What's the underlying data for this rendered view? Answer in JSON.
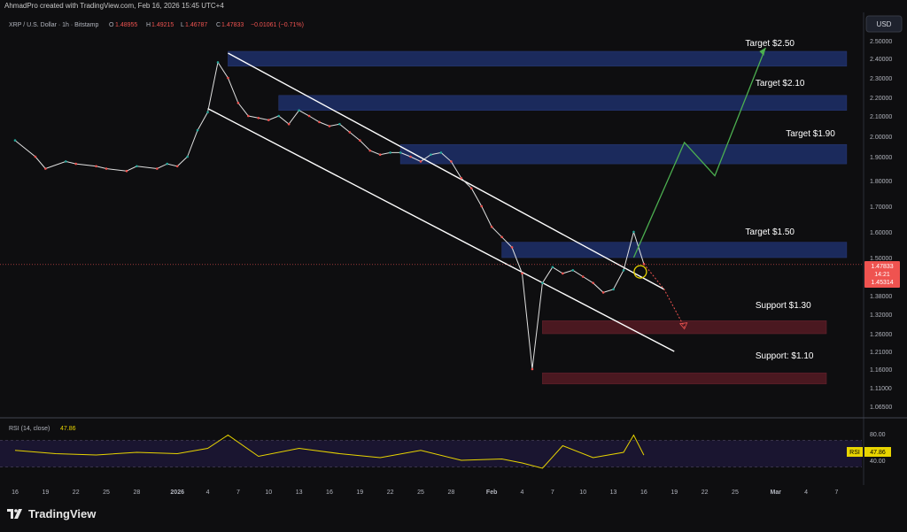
{
  "header": {
    "credit": "AhmadPro created with TradingView.com, Feb 16, 2026 15:45 UTC+4",
    "symbol": "XRP / U.S. Dollar · 1h · Bitstamp",
    "o_label": "O",
    "o_value": "1.48955",
    "h_label": "H",
    "h_value": "1.49215",
    "l_label": "L",
    "l_value": "1.46787",
    "c_label": "C",
    "c_value": "1.47833",
    "change": "−0.01061 (−0.71%)",
    "currency": "USD"
  },
  "price_tag": {
    "price": "1.47833",
    "countdown": "14:21",
    "level": "1.45314"
  },
  "rsi": {
    "title": "RSI (14, close)",
    "value": "47.86",
    "tag_label": "RSI",
    "tag_value": "47.86"
  },
  "footer": {
    "brand": "TradingView"
  },
  "colors": {
    "up": "#26a69a",
    "down": "#ef5350",
    "zone_blue": "#1b2a5c",
    "zone_red": "#4a1820",
    "target_path": "#4caf50",
    "rsi_line": "#e8d400"
  },
  "chart_data": {
    "type": "line",
    "title": "XRP / U.S. Dollar · 1h · Bitstamp",
    "ylim": [
      1.04,
      2.52
    ],
    "y_ticks": [
      "2.50000",
      "2.40000",
      "2.30000",
      "2.20000",
      "2.10000",
      "2.00000",
      "1.90000",
      "1.80000",
      "1.70000",
      "1.60000",
      "1.50000",
      "1.38000",
      "1.32000",
      "1.26000",
      "1.21000",
      "1.16000",
      "1.11000",
      "1.06500"
    ],
    "x_ticks": [
      "16",
      "19",
      "22",
      "25",
      "28",
      "2026",
      "4",
      "7",
      "10",
      "13",
      "16",
      "19",
      "22",
      "25",
      "28",
      "Feb",
      "4",
      "7",
      "10",
      "13",
      "16",
      "19",
      "22",
      "25",
      "Mar",
      "4",
      "7"
    ],
    "price_series": {
      "name": "XRP/USD",
      "x": [
        "Dec 16",
        "Dec 18",
        "Dec 19",
        "Dec 21",
        "Dec 22",
        "Dec 24",
        "Dec 25",
        "Dec 27",
        "Dec 28",
        "Dec 30",
        "Dec 31",
        "Jan 1",
        "Jan 2",
        "Jan 3",
        "Jan 4",
        "Jan 5",
        "Jan 6",
        "Jan 7",
        "Jan 8",
        "Jan 9",
        "Jan 10",
        "Jan 11",
        "Jan 12",
        "Jan 13",
        "Jan 14",
        "Jan 15",
        "Jan 16",
        "Jan 17",
        "Jan 18",
        "Jan 19",
        "Jan 20",
        "Jan 21",
        "Jan 22",
        "Jan 23",
        "Jan 24",
        "Jan 25",
        "Jan 26",
        "Jan 27",
        "Jan 28",
        "Jan 29",
        "Jan 30",
        "Jan 31",
        "Feb 1",
        "Feb 2",
        "Feb 3",
        "Feb 4",
        "Feb 5",
        "Feb 6",
        "Feb 7",
        "Feb 8",
        "Feb 9",
        "Feb 10",
        "Feb 11",
        "Feb 12",
        "Feb 13",
        "Feb 14",
        "Feb 15",
        "Feb 16"
      ],
      "y": [
        1.98,
        1.9,
        1.85,
        1.88,
        1.87,
        1.86,
        1.85,
        1.84,
        1.86,
        1.85,
        1.87,
        1.86,
        1.9,
        2.03,
        2.12,
        2.38,
        2.3,
        2.17,
        2.1,
        2.09,
        2.08,
        2.1,
        2.06,
        2.13,
        2.1,
        2.07,
        2.05,
        2.06,
        2.02,
        1.98,
        1.93,
        1.91,
        1.92,
        1.92,
        1.9,
        1.88,
        1.91,
        1.92,
        1.88,
        1.81,
        1.77,
        1.7,
        1.62,
        1.58,
        1.54,
        1.45,
        1.16,
        1.42,
        1.47,
        1.45,
        1.46,
        1.44,
        1.42,
        1.39,
        1.4,
        1.46,
        1.6,
        1.48
      ]
    },
    "rsi_series": {
      "name": "RSI (14, close)",
      "ylim": [
        20,
        100
      ],
      "levels": [
        70,
        30
      ],
      "tick_labels": [
        "80.00",
        "40.00"
      ],
      "x": [
        "Dec 16",
        "Dec 20",
        "Dec 24",
        "Dec 28",
        "Jan 1",
        "Jan 4",
        "Jan 6",
        "Jan 9",
        "Jan 13",
        "Jan 17",
        "Jan 21",
        "Jan 25",
        "Jan 29",
        "Feb 2",
        "Feb 4",
        "Feb 6",
        "Feb 8",
        "Feb 11",
        "Feb 14",
        "Feb 15",
        "Feb 16"
      ],
      "y": [
        55,
        50,
        48,
        52,
        50,
        58,
        78,
        46,
        58,
        50,
        44,
        55,
        40,
        42,
        36,
        28,
        62,
        44,
        52,
        78,
        47.86
      ]
    },
    "zones": [
      {
        "type": "resistance",
        "from": "Jan 6",
        "to": "Mar 8",
        "low": 2.36,
        "high": 2.44
      },
      {
        "type": "resistance",
        "from": "Jan 11",
        "to": "Mar 8",
        "low": 2.13,
        "high": 2.21
      },
      {
        "type": "resistance",
        "from": "Jan 23",
        "to": "Mar 8",
        "low": 1.87,
        "high": 1.96
      },
      {
        "type": "resistance",
        "from": "Feb 2",
        "to": "Mar 8",
        "low": 1.5,
        "high": 1.56
      },
      {
        "type": "support",
        "from": "Feb 6",
        "to": "Mar 6",
        "low": 1.26,
        "high": 1.3
      },
      {
        "type": "support",
        "from": "Feb 6",
        "to": "Mar 6",
        "low": 1.12,
        "high": 1.15
      }
    ],
    "annotations": [
      {
        "text": "Target $2.50",
        "x": "Feb 26",
        "y": 2.47
      },
      {
        "text": "Target $2.10",
        "x": "Feb 27",
        "y": 2.26
      },
      {
        "text": "Target $1.90",
        "x": "Mar 2",
        "y": 2.0
      },
      {
        "text": "Target $1.50",
        "x": "Feb 26",
        "y": 1.59
      },
      {
        "text": "Support $1.30",
        "x": "Feb 27",
        "y": 1.34
      },
      {
        "text": "Support: $1.10",
        "x": "Feb 27",
        "y": 1.19
      }
    ]
  }
}
